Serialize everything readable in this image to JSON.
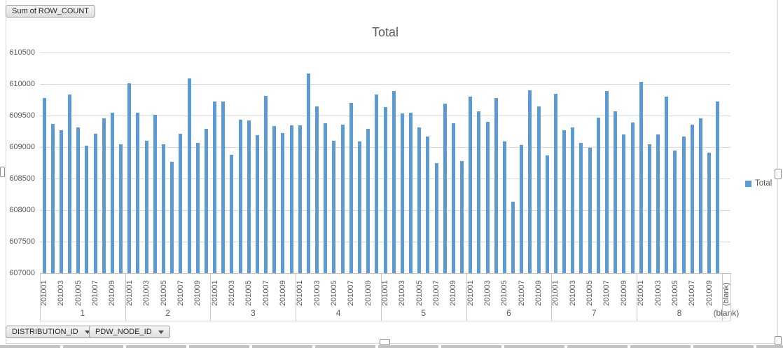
{
  "pivot": {
    "value_button": "Sum of ROW_COUNT",
    "axis_buttons": [
      {
        "label": "DISTRIBUTION_ID"
      },
      {
        "label": "PDW_NODE_ID"
      }
    ]
  },
  "legend": {
    "label": "Total"
  },
  "chart_data": {
    "type": "bar",
    "title": "Total",
    "series_name": "Total",
    "bar_color": "#5B9BD5",
    "grid": true,
    "legend_position": "right",
    "ylim": [
      607000,
      610500
    ],
    "yticks": [
      607000,
      607500,
      608000,
      608500,
      609000,
      609500,
      610000,
      610500
    ],
    "month_categories": [
      "201001",
      "201002",
      "201003",
      "201004",
      "201005",
      "201006",
      "201007",
      "201008",
      "201009",
      "201010"
    ],
    "month_ticks_shown": [
      "201001",
      "201003",
      "201005",
      "201007",
      "201009"
    ],
    "groups": [
      {
        "label": "1",
        "values": [
          609780,
          609370,
          609270,
          609830,
          609310,
          609020,
          609210,
          609460,
          609540,
          609040
        ]
      },
      {
        "label": "2",
        "values": [
          610010,
          609550,
          609100,
          609510,
          609040,
          608770,
          609210,
          610090,
          609070,
          609290
        ]
      },
      {
        "label": "3",
        "values": [
          609720,
          609720,
          608880,
          609430,
          609420,
          609190,
          609810,
          609330,
          609220,
          609350
        ]
      },
      {
        "label": "4",
        "values": [
          609350,
          610170,
          609640,
          609380,
          609100,
          609360,
          609700,
          609090,
          609290,
          609830
        ]
      },
      {
        "label": "5",
        "values": [
          609630,
          609890,
          609530,
          609540,
          609310,
          609170,
          608750,
          609690,
          609380,
          608780
        ]
      },
      {
        "label": "6",
        "values": [
          609800,
          609570,
          609400,
          609780,
          609090,
          608130,
          609030,
          609900,
          609650,
          608870
        ]
      },
      {
        "label": "7",
        "values": [
          609850,
          609270,
          609310,
          609070,
          608990,
          609470,
          609890,
          609570,
          609200,
          609390
        ]
      },
      {
        "label": "8",
        "values": [
          610030,
          609040,
          609200,
          609800,
          608940,
          609170,
          609360,
          609460,
          608910,
          609720
        ]
      },
      {
        "label": "(blank)",
        "months": [
          "(blank)"
        ],
        "values": [
          null
        ]
      }
    ]
  }
}
